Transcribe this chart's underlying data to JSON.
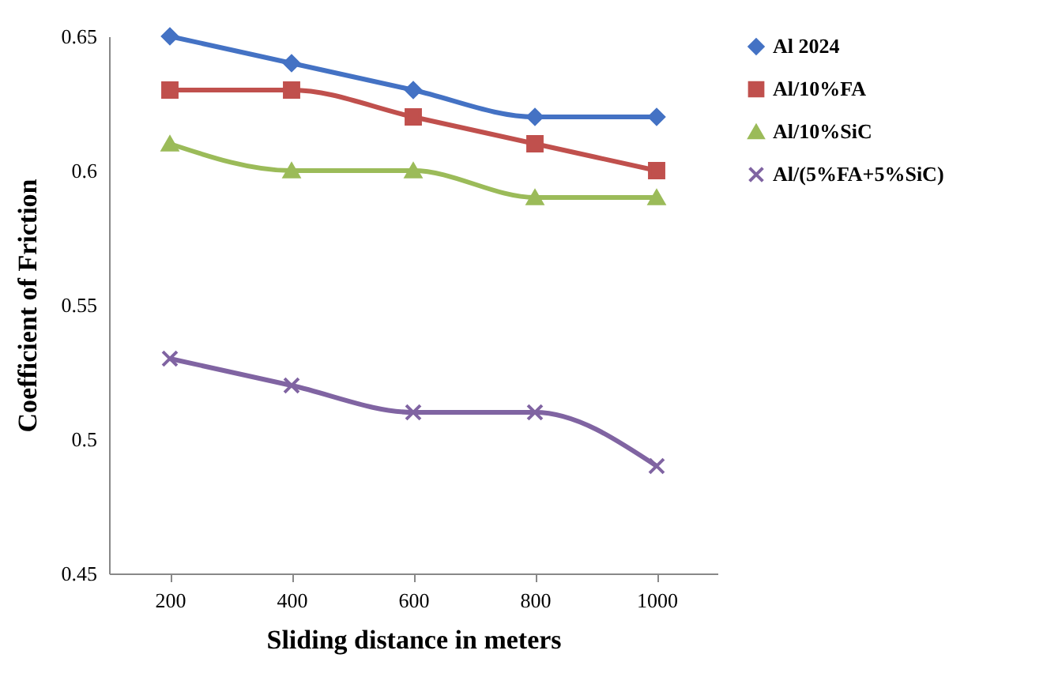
{
  "chart_data": {
    "type": "line",
    "xlabel": "Sliding distance in meters",
    "ylabel": "Coefficient of Friction",
    "categories": [
      "200",
      "400",
      "600",
      "800",
      "1000"
    ],
    "ylim": [
      0.45,
      0.65
    ],
    "yticks": [
      0.45,
      0.5,
      0.55,
      0.6,
      0.65
    ],
    "grid": false,
    "legend": "right",
    "series": [
      {
        "name": "Al 2024",
        "color": "#4472c4",
        "marker": "diamond",
        "values": [
          0.65,
          0.64,
          0.63,
          0.62,
          0.62
        ]
      },
      {
        "name": "Al/10%FA",
        "color": "#c0504d",
        "marker": "square",
        "values": [
          0.63,
          0.63,
          0.62,
          0.61,
          0.6
        ]
      },
      {
        "name": "Al/10%SiC",
        "color": "#9bbb59",
        "marker": "triangle",
        "values": [
          0.61,
          0.6,
          0.6,
          0.59,
          0.59
        ]
      },
      {
        "name": "Al/(5%FA+5%SiC)",
        "color": "#8064a2",
        "marker": "cross",
        "values": [
          0.53,
          0.52,
          0.51,
          0.51,
          0.49
        ]
      }
    ]
  }
}
